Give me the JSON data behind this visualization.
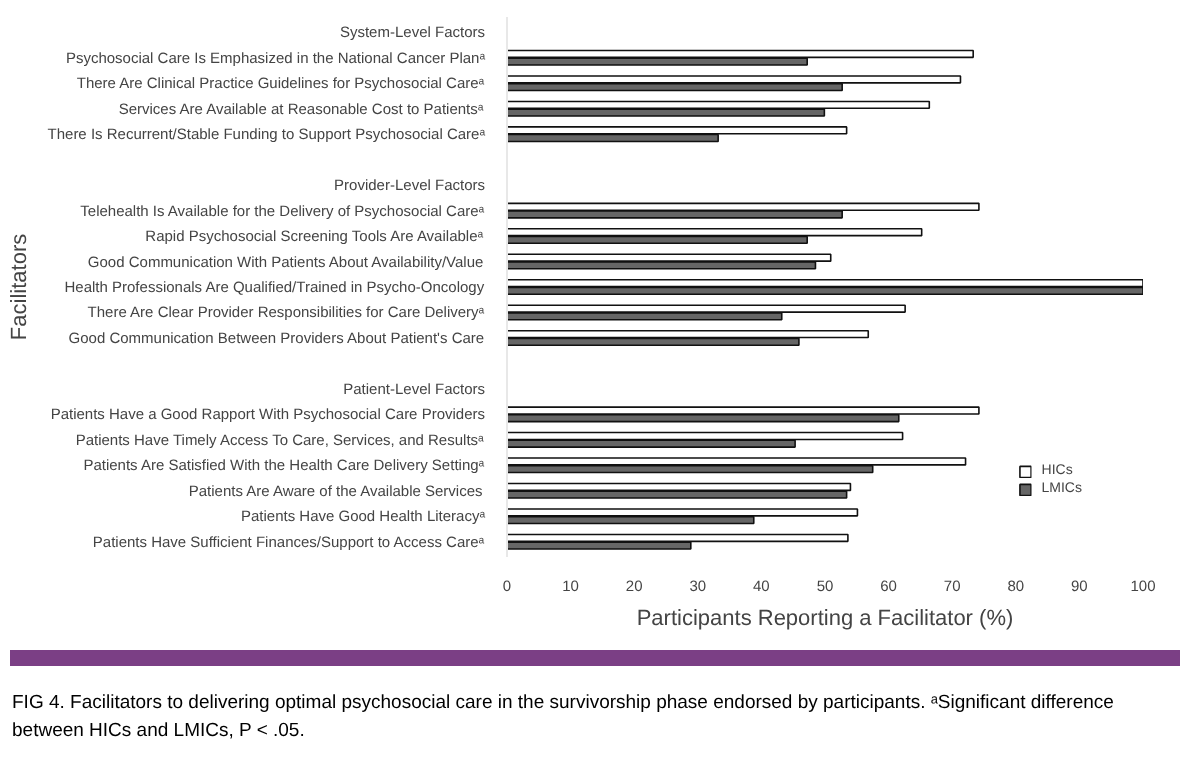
{
  "chart_data": {
    "type": "bar",
    "orientation": "horizontal",
    "ylabel": "Facilitators",
    "xlabel": "Participants Reporting a Facilitator (%)",
    "categories": [
      "System-Level Factors",
      "Psychosocial Care Is Emphasized in the National Cancer Planᵃ",
      "There Are Clinical Practice Guidelines for Psychosocial Careᵃ",
      "Services Are Available at Reasonable Cost to Patientsᵃ",
      "There Is Recurrent/Stable Funding to Support Psychosocial Careᵃ",
      null,
      "Provider-Level Factors",
      "Telehealth Is Available for the Delivery of Psychosocial Careᵃ",
      "Rapid Psychosocial Screening Tools Are Availableᵃ",
      "Good Communication With Patients About Availability/Value",
      "Health Professionals Are Qualified/Trained in Psycho-Oncology",
      "There Are Clear Provider Responsibilities for Care Deliveryᵃ",
      "Good Communication Between Providers About Patient's Care",
      null,
      "Patient-Level Factors",
      "Patients Have a Good Rapport With Psychosocial Care Providers",
      "Patients Have Timely Access To Care, Services, and Resultsᵃ",
      "Patients Are Satisfied With the Health Care Delivery Settingᵃ",
      "Patients Are Aware of the Available Services",
      "Patients Have Good Health Literacyᵃ",
      "Patients Have Sufficient Finances/Support to Access Careᵃ"
    ],
    "series": [
      {
        "name": "HICs",
        "color": "#ffffff",
        "values": [
          null,
          73.3,
          71.3,
          66.4,
          53.4,
          null,
          null,
          74.2,
          65.2,
          50.9,
          100,
          62.6,
          56.8,
          null,
          null,
          74.2,
          62.2,
          72.1,
          54.0,
          55.1,
          53.6
        ]
      },
      {
        "name": "LMICs",
        "color": "#666666",
        "values": [
          null,
          47.2,
          52.7,
          49.9,
          33.2,
          null,
          null,
          52.7,
          47.2,
          48.5,
          100,
          43.2,
          45.9,
          null,
          null,
          61.6,
          45.3,
          57.5,
          53.4,
          38.8,
          28.9
        ]
      }
    ],
    "xlim": [
      0,
      100
    ],
    "xticks": [
      0,
      10,
      20,
      30,
      40,
      50,
      60,
      70,
      80,
      90,
      100
    ],
    "grid": false,
    "legend": "bottom right",
    "annotations": [
      "FIG 4. Facilitators to delivering optimal psychosocial care in the survivorship phase endorsed by participants. ᵃSignificant difference between HICs and LMICs, P < .05."
    ]
  }
}
